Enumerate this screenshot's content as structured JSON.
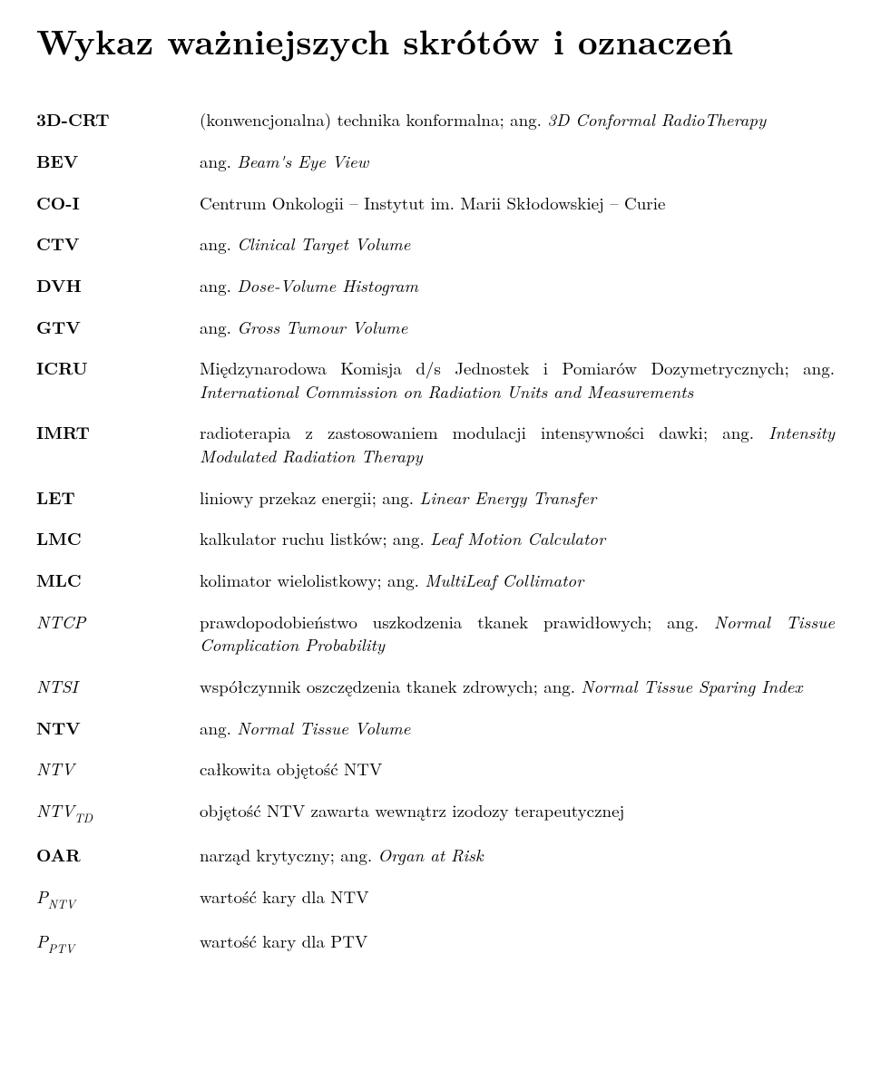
{
  "title": "Wykaz ważniejszych skrótów i oznaczeń",
  "entries": [
    {
      "abbr_html": "3D-CRT",
      "def_html": "(konwencjonalna) technika konformalna; ang. <span class=\"it\">3D Conformal RadioTherapy</span>"
    },
    {
      "abbr_html": "BEV",
      "def_html": "ang. <span class=\"it\">Beam's Eye View</span>"
    },
    {
      "abbr_html": "CO-I",
      "def_html": "Centrum Onkologii – Instytut im. Marii Skłodowskiej – Curie"
    },
    {
      "abbr_html": "CTV",
      "def_html": "ang. <span class=\"it\">Clinical Target Volume</span>"
    },
    {
      "abbr_html": "DVH",
      "def_html": "ang. <span class=\"it\">Dose-Volume Histogram</span>"
    },
    {
      "abbr_html": "GTV",
      "def_html": "ang. <span class=\"it\">Gross Tumour Volume</span>"
    },
    {
      "abbr_html": "ICRU",
      "def_html": "Międzynarodowa Komisja d/s Jednostek i Pomiarów Dozymetrycznych; ang. <span class=\"it\">International Commission on Radiation Units and Measurements</span>"
    },
    {
      "abbr_html": "IMRT",
      "def_html": "radioterapia z zastosowaniem modulacji intensywności dawki; ang. <span class=\"it\">Intensity Modulated Radiation Therapy</span>"
    },
    {
      "abbr_html": "LET",
      "def_html": "liniowy przekaz energii; ang. <span class=\"it\">Linear Energy Transfer</span>"
    },
    {
      "abbr_html": "LMC",
      "def_html": "kalkulator ruchu listków; ang. <span class=\"it\">Leaf Motion Calculator</span>"
    },
    {
      "abbr_html": "MLC",
      "def_html": "kolimator wielolistkowy; ang. <span class=\"it\">MultiLeaf Collimator</span>"
    },
    {
      "abbr_html": "<span class=\"ital\">NTCP</span>",
      "def_html": "prawdopodobieństwo uszkodzenia tkanek prawidłowych; ang. <span class=\"it\">Normal Tissue Complication Probability</span>"
    },
    {
      "abbr_html": "<span class=\"ital\">NTSI</span>",
      "def_html": "współczynnik oszczędzenia tkanek zdrowych; ang. <span class=\"it\">Normal Tissue Sparing Index</span>"
    },
    {
      "abbr_html": "NTV",
      "def_html": "ang. <span class=\"it\">Normal Tissue Volume</span>"
    },
    {
      "abbr_html": "<span class=\"ital\">NTV</span>",
      "def_html": "całkowita objętość NTV"
    },
    {
      "abbr_html": "<span class=\"ital\">NTV</span><span class=\"sub\">TD</span>",
      "def_html": "objętość NTV zawarta wewnątrz izodozy terapeutycznej"
    },
    {
      "abbr_html": "OAR",
      "def_html": "narząd krytyczny; ang. <span class=\"it\">Organ at Risk</span>"
    },
    {
      "abbr_html": "<span class=\"ital\">P</span><span class=\"sub\">NTV</span>",
      "def_html": "wartość kary dla NTV"
    },
    {
      "abbr_html": "<span class=\"ital\">P</span><span class=\"sub\">PTV</span>",
      "def_html": "wartość kary dla PTV"
    }
  ]
}
